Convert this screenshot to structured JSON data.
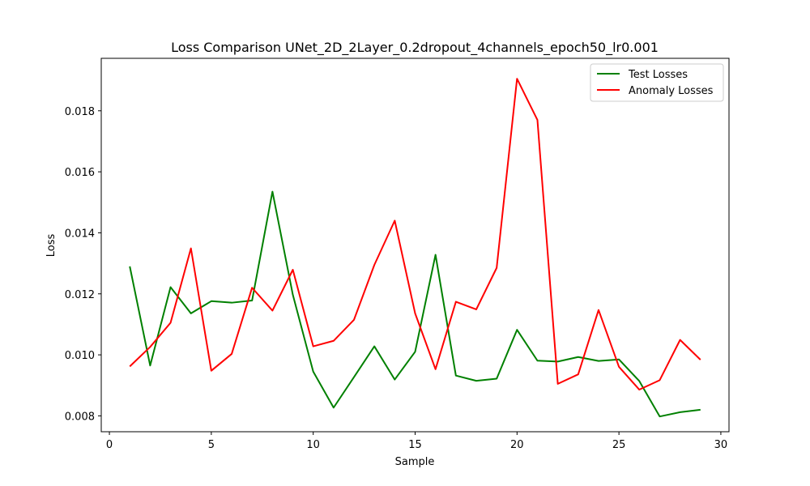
{
  "chart_data": {
    "type": "line",
    "title": "Loss Comparison UNet_2D_2Layer_0.2dropout_4channels_epoch50_lr0.001",
    "xlabel": "Sample",
    "ylabel": "Loss",
    "xlim": [
      -0.4,
      30.4
    ],
    "ylim": [
      0.00748,
      0.01972
    ],
    "x_ticks": [
      0,
      5,
      10,
      15,
      20,
      25,
      30
    ],
    "y_ticks": [
      0.008,
      0.01,
      0.012,
      0.014,
      0.016,
      0.018
    ],
    "x_tick_labels": [
      "0",
      "5",
      "10",
      "15",
      "20",
      "25",
      "30"
    ],
    "y_tick_labels": [
      "0.008",
      "0.010",
      "0.012",
      "0.014",
      "0.016",
      "0.018"
    ],
    "grid": false,
    "legend_position": "top-right",
    "x": [
      1,
      2,
      3,
      4,
      5,
      6,
      7,
      8,
      9,
      10,
      11,
      12,
      13,
      14,
      15,
      16,
      17,
      18,
      19,
      20,
      21,
      22,
      23,
      24,
      25,
      26,
      27,
      28,
      29
    ],
    "series": [
      {
        "name": "Test Losses",
        "color": "#008000",
        "values": [
          0.0129,
          0.00965,
          0.01222,
          0.01136,
          0.01176,
          0.01171,
          0.01178,
          0.01535,
          0.01197,
          0.00945,
          0.00827,
          0.00927,
          0.01028,
          0.00919,
          0.0101,
          0.01328,
          0.00932,
          0.00915,
          0.00922,
          0.01082,
          0.00981,
          0.00978,
          0.00993,
          0.0098,
          0.00985,
          0.00914,
          0.00798,
          0.00812,
          0.0082
        ]
      },
      {
        "name": "Anomaly Losses",
        "color": "#ff0000",
        "values": [
          0.00962,
          0.01026,
          0.01105,
          0.01349,
          0.00948,
          0.01003,
          0.0122,
          0.01145,
          0.01279,
          0.01028,
          0.01046,
          0.01115,
          0.01295,
          0.0144,
          0.01136,
          0.00953,
          0.01174,
          0.01149,
          0.01285,
          0.01905,
          0.0177,
          0.00905,
          0.00936,
          0.01147,
          0.00961,
          0.00886,
          0.00917,
          0.01049,
          0.00984
        ]
      }
    ]
  }
}
